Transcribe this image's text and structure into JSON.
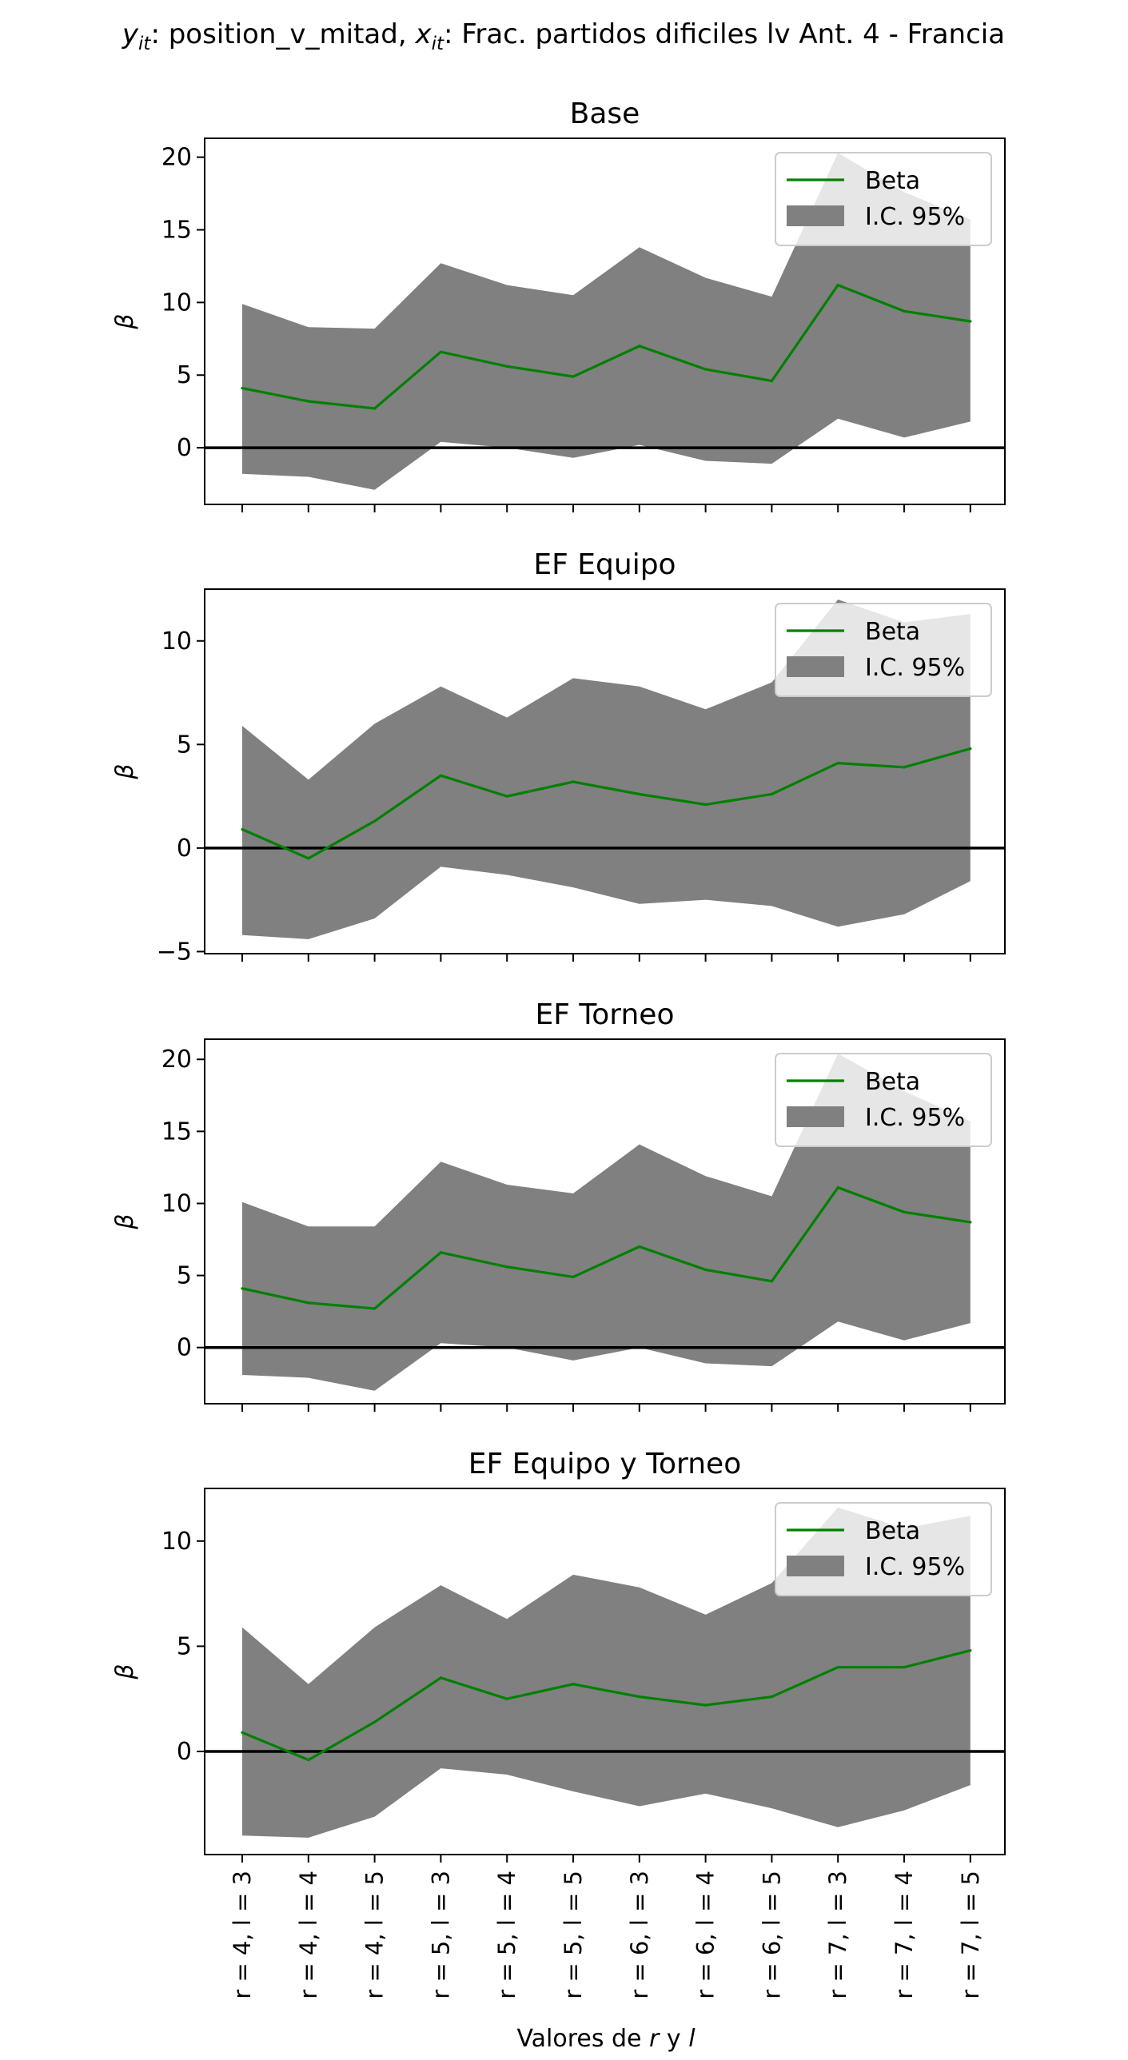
{
  "figure": {
    "suptitle_prefix_1": "y",
    "suptitle_sub_1": "it",
    "suptitle_part_1": ": position_v_mitad, ",
    "suptitle_prefix_2": "x",
    "suptitle_sub_2": "it",
    "suptitle_part_2": ": Frac. partidos dificiles lv Ant. 4 - Francia",
    "xlabel_text": "Valores de ",
    "xlabel_r": "r",
    "xlabel_mid": " y ",
    "xlabel_l": "l",
    "ylabel": "β",
    "legend_beta": "Beta",
    "legend_ci": "I.C. 95%",
    "colors": {
      "line": "#008000",
      "band": "#808080",
      "zero": "#000000"
    }
  },
  "chart_data": [
    {
      "type": "line",
      "title": "Base",
      "categories": [
        "r = 4, l = 3",
        "r = 4, l = 4",
        "r = 4, l = 5",
        "r = 5, l = 3",
        "r = 5, l = 4",
        "r = 5, l = 5",
        "r = 6, l = 3",
        "r = 6, l = 4",
        "r = 6, l = 5",
        "r = 7, l = 3",
        "r = 7, l = 4",
        "r = 7, l = 5"
      ],
      "beta": [
        4.1,
        3.2,
        2.7,
        6.6,
        5.6,
        4.9,
        7.0,
        5.4,
        4.6,
        11.2,
        9.4,
        8.7
      ],
      "ci_lower": [
        -1.8,
        -2.0,
        -2.9,
        0.4,
        0.0,
        -0.7,
        0.2,
        -0.9,
        -1.1,
        2.0,
        0.7,
        1.8
      ],
      "ci_upper": [
        9.9,
        8.3,
        8.2,
        12.7,
        11.2,
        10.5,
        13.8,
        11.7,
        10.4,
        20.3,
        17.6,
        15.7
      ],
      "ylim": [
        -3.9,
        21.3
      ],
      "yticks": [
        0,
        5,
        10,
        15,
        20
      ],
      "legend": "top-right"
    },
    {
      "type": "line",
      "title": "EF Equipo",
      "categories": [
        "r = 4, l = 3",
        "r = 4, l = 4",
        "r = 4, l = 5",
        "r = 5, l = 3",
        "r = 5, l = 4",
        "r = 5, l = 5",
        "r = 6, l = 3",
        "r = 6, l = 4",
        "r = 6, l = 5",
        "r = 7, l = 3",
        "r = 7, l = 4",
        "r = 7, l = 5"
      ],
      "beta": [
        0.9,
        -0.5,
        1.3,
        3.5,
        2.5,
        3.2,
        2.6,
        2.1,
        2.6,
        4.1,
        3.9,
        4.8
      ],
      "ci_lower": [
        -4.2,
        -4.4,
        -3.4,
        -0.9,
        -1.3,
        -1.9,
        -2.7,
        -2.5,
        -2.8,
        -3.8,
        -3.2,
        -1.6
      ],
      "ci_upper": [
        5.9,
        3.3,
        6.0,
        7.8,
        6.3,
        8.2,
        7.8,
        6.7,
        8.0,
        12.0,
        10.9,
        11.3
      ],
      "ylim": [
        -5.1,
        12.5
      ],
      "yticks": [
        -5,
        0,
        5,
        10
      ],
      "legend": "top-right"
    },
    {
      "type": "line",
      "title": "EF Torneo",
      "categories": [
        "r = 4, l = 3",
        "r = 4, l = 4",
        "r = 4, l = 5",
        "r = 5, l = 3",
        "r = 5, l = 4",
        "r = 5, l = 5",
        "r = 6, l = 3",
        "r = 6, l = 4",
        "r = 6, l = 5",
        "r = 7, l = 3",
        "r = 7, l = 4",
        "r = 7, l = 5"
      ],
      "beta": [
        4.1,
        3.1,
        2.7,
        6.6,
        5.6,
        4.9,
        7.0,
        5.4,
        4.6,
        11.1,
        9.4,
        8.7
      ],
      "ci_lower": [
        -1.9,
        -2.1,
        -3.0,
        0.3,
        0.0,
        -0.9,
        0.0,
        -1.1,
        -1.3,
        1.8,
        0.5,
        1.7
      ],
      "ci_upper": [
        10.1,
        8.4,
        8.4,
        12.9,
        11.3,
        10.7,
        14.1,
        11.9,
        10.5,
        20.4,
        17.8,
        15.7
      ],
      "ylim": [
        -3.9,
        21.4
      ],
      "yticks": [
        0,
        5,
        10,
        15,
        20
      ],
      "legend": "top-right"
    },
    {
      "type": "line",
      "title": "EF Equipo y Torneo",
      "categories": [
        "r = 4, l = 3",
        "r = 4, l = 4",
        "r = 4, l = 5",
        "r = 5, l = 3",
        "r = 5, l = 4",
        "r = 5, l = 5",
        "r = 6, l = 3",
        "r = 6, l = 4",
        "r = 6, l = 5",
        "r = 7, l = 3",
        "r = 7, l = 4",
        "r = 7, l = 5"
      ],
      "beta": [
        0.9,
        -0.4,
        1.4,
        3.5,
        2.5,
        3.2,
        2.6,
        2.2,
        2.6,
        4.0,
        4.0,
        4.8
      ],
      "ci_lower": [
        -4.0,
        -4.1,
        -3.1,
        -0.8,
        -1.1,
        -1.9,
        -2.6,
        -2.0,
        -2.7,
        -3.6,
        -2.8,
        -1.6
      ],
      "ci_upper": [
        5.9,
        3.2,
        5.9,
        7.9,
        6.3,
        8.4,
        7.8,
        6.5,
        8.0,
        11.6,
        10.6,
        11.2
      ],
      "ylim": [
        -4.9,
        12.5
      ],
      "yticks": [
        0,
        5,
        10
      ],
      "legend": "top-right"
    }
  ]
}
